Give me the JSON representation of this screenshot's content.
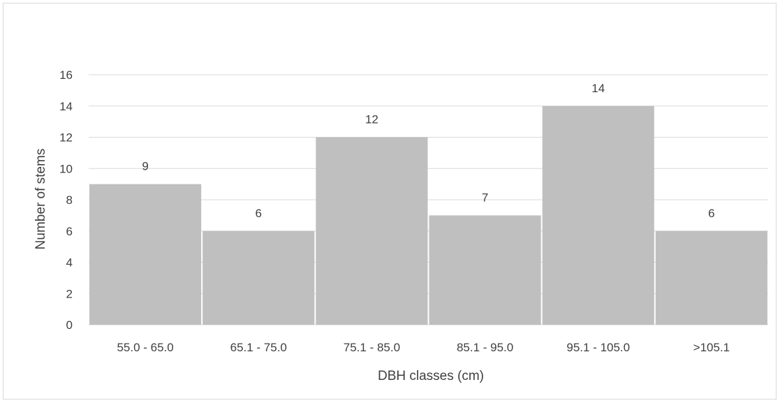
{
  "chart_data": {
    "type": "bar",
    "title": "",
    "xlabel": "DBH classes (cm)",
    "ylabel": "Number of stems",
    "categories": [
      "55.0 - 65.0",
      "65.1 - 75.0",
      "75.1 - 85.0",
      "85.1 - 95.0",
      "95.1 - 105.0",
      ">105.1"
    ],
    "values": [
      9,
      6,
      12,
      7,
      14,
      6
    ],
    "ylim": [
      0,
      16
    ],
    "yticks": [
      0,
      2,
      4,
      6,
      8,
      10,
      12,
      14,
      16
    ],
    "grid": true,
    "legend": "none",
    "data_labels": true,
    "colors": {
      "bar": "#bfbfbf",
      "gridline": "#d9d9d9",
      "text": "#404040"
    }
  }
}
